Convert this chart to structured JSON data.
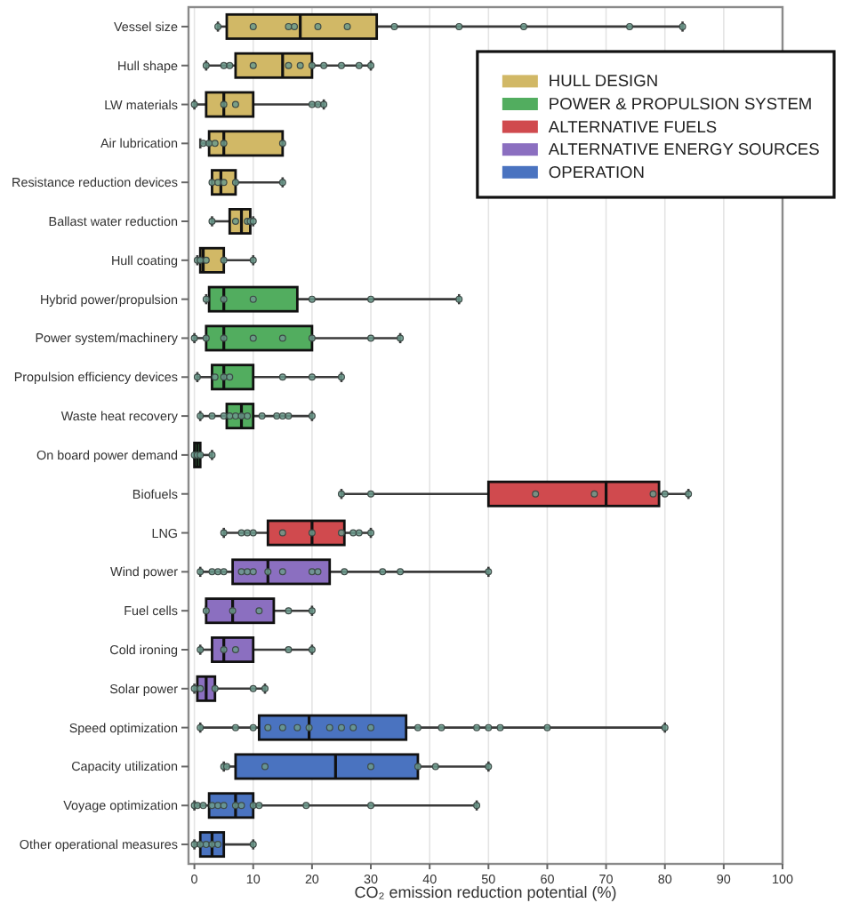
{
  "chart_data": {
    "type": "box",
    "orientation": "horizontal",
    "categories": [
      "Vessel size",
      "Hull shape",
      "LW materials",
      "Air lubrication",
      "Resistance reduction devices",
      "Ballast water reduction",
      "Hull coating",
      "Hybrid power/propulsion",
      "Power system/machinery",
      "Propulsion efficiency devices",
      "Waste heat recovery",
      "On board power demand",
      "Biofuels",
      "LNG",
      "Wind power",
      "Fuel cells",
      "Cold ironing",
      "Solar power",
      "Speed optimization",
      "Capacity utilization",
      "Voyage optimization",
      "Other operational measures"
    ],
    "series": [
      {
        "name": "HULL DESIGN",
        "color": "#d1b866",
        "boxes": [
          {
            "low": 4,
            "q1": 5.5,
            "median": 18,
            "q3": 31,
            "high": 83
          },
          {
            "low": 2,
            "q1": 7,
            "median": 15,
            "q3": 20,
            "high": 30
          },
          {
            "low": 0,
            "q1": 2,
            "median": 5,
            "q3": 10,
            "high": 22
          },
          {
            "low": 1,
            "q1": 2.5,
            "median": 5,
            "q3": 15,
            "high": 15
          },
          {
            "low": 3,
            "q1": 3,
            "median": 4.5,
            "q3": 7,
            "high": 15
          },
          {
            "low": 3,
            "q1": 6,
            "median": 8,
            "q3": 9.5,
            "high": 10
          },
          {
            "low": 0.5,
            "q1": 1,
            "median": 1.5,
            "q3": 5,
            "high": 10
          },
          null,
          null,
          null,
          null,
          null,
          null,
          null,
          null,
          null,
          null,
          null,
          null,
          null,
          null,
          null
        ]
      },
      {
        "name": "POWER & PROPULSION SYSTEM",
        "color": "#52ad5f",
        "boxes": [
          null,
          null,
          null,
          null,
          null,
          null,
          null,
          {
            "low": 2,
            "q1": 2.5,
            "median": 5,
            "q3": 17.5,
            "high": 45
          },
          {
            "low": 0,
            "q1": 2,
            "median": 5,
            "q3": 20,
            "high": 35
          },
          {
            "low": 0.5,
            "q1": 3,
            "median": 5,
            "q3": 10,
            "high": 25
          },
          {
            "low": 1,
            "q1": 5.5,
            "median": 8,
            "q3": 10,
            "high": 20
          },
          {
            "low": 0,
            "q1": 0,
            "median": 0.5,
            "q3": 1,
            "high": 3
          },
          null,
          null,
          null,
          null,
          null,
          null,
          null,
          null,
          null,
          null
        ]
      },
      {
        "name": "ALTERNATIVE FUELS",
        "color": "#d04a4e",
        "boxes": [
          null,
          null,
          null,
          null,
          null,
          null,
          null,
          null,
          null,
          null,
          null,
          null,
          {
            "low": 25,
            "q1": 50,
            "median": 70,
            "q3": 79,
            "high": 84
          },
          {
            "low": 5,
            "q1": 12.5,
            "median": 20,
            "q3": 25.5,
            "high": 30
          },
          null,
          null,
          null,
          null,
          null,
          null,
          null,
          null
        ]
      },
      {
        "name": "ALTERNATIVE ENERGY SOURCES",
        "color": "#8b6fc0",
        "boxes": [
          null,
          null,
          null,
          null,
          null,
          null,
          null,
          null,
          null,
          null,
          null,
          null,
          null,
          null,
          {
            "low": 1,
            "q1": 6.5,
            "median": 12.5,
            "q3": 23,
            "high": 50
          },
          {
            "low": 2,
            "q1": 2,
            "median": 6.5,
            "q3": 13.5,
            "high": 20
          },
          {
            "low": 1,
            "q1": 3,
            "median": 5,
            "q3": 10,
            "high": 20
          },
          {
            "low": 0,
            "q1": 0.5,
            "median": 2,
            "q3": 3.5,
            "high": 12
          },
          null,
          null,
          null,
          null
        ]
      },
      {
        "name": "OPERATION",
        "color": "#4a73c0",
        "boxes": [
          null,
          null,
          null,
          null,
          null,
          null,
          null,
          null,
          null,
          null,
          null,
          null,
          null,
          null,
          null,
          null,
          null,
          null,
          {
            "low": 1,
            "q1": 11,
            "median": 19.5,
            "q3": 36,
            "high": 80
          },
          {
            "low": 5,
            "q1": 7,
            "median": 24,
            "q3": 38,
            "high": 50
          },
          {
            "low": 0,
            "q1": 2.5,
            "median": 7,
            "q3": 10,
            "high": 48
          },
          {
            "low": 0,
            "q1": 1,
            "median": 3,
            "q3": 5,
            "high": 10
          }
        ]
      },
      {
        "type": "scatter",
        "color": "#6b9a8c",
        "x": [
          "Vessel size",
          "Vessel size",
          "Vessel size",
          "Vessel size",
          "Vessel size",
          "Vessel size",
          "Vessel size",
          "Vessel size",
          "Vessel size",
          "Vessel size",
          "Vessel size",
          "Hull shape",
          "Hull shape",
          "Hull shape",
          "Hull shape",
          "Hull shape",
          "Hull shape",
          "Hull shape",
          "Hull shape",
          "Hull shape",
          "Hull shape",
          "Hull shape",
          "LW materials",
          "LW materials",
          "LW materials",
          "LW materials",
          "LW materials",
          "LW materials",
          "Air lubrication",
          "Air lubrication",
          "Air lubrication",
          "Air lubrication",
          "Air lubrication",
          "Resistance reduction devices",
          "Resistance reduction devices",
          "Resistance reduction devices",
          "Resistance reduction devices",
          "Resistance reduction devices",
          "Ballast water reduction",
          "Ballast water reduction",
          "Ballast water reduction",
          "Ballast water reduction",
          "Ballast water reduction",
          "Hull coating",
          "Hull coating",
          "Hull coating",
          "Hull coating",
          "Hull coating",
          "Hybrid power/propulsion",
          "Hybrid power/propulsion",
          "Hybrid power/propulsion",
          "Hybrid power/propulsion",
          "Hybrid power/propulsion",
          "Hybrid power/propulsion",
          "Power system/machinery",
          "Power system/machinery",
          "Power system/machinery",
          "Power system/machinery",
          "Power system/machinery",
          "Power system/machinery",
          "Power system/machinery",
          "Power system/machinery",
          "Propulsion efficiency devices",
          "Propulsion efficiency devices",
          "Propulsion efficiency devices",
          "Propulsion efficiency devices",
          "Propulsion efficiency devices",
          "Propulsion efficiency devices",
          "Propulsion efficiency devices",
          "Waste heat recovery",
          "Waste heat recovery",
          "Waste heat recovery",
          "Waste heat recovery",
          "Waste heat recovery",
          "Waste heat recovery",
          "Waste heat recovery",
          "Waste heat recovery",
          "Waste heat recovery",
          "Waste heat recovery",
          "Waste heat recovery",
          "Waste heat recovery",
          "On board power demand",
          "On board power demand",
          "On board power demand",
          "On board power demand",
          "Biofuels",
          "Biofuels",
          "Biofuels",
          "Biofuels",
          "Biofuels",
          "Biofuels",
          "Biofuels",
          "LNG",
          "LNG",
          "LNG",
          "LNG",
          "LNG",
          "LNG",
          "LNG",
          "LNG",
          "LNG",
          "LNG",
          "Wind power",
          "Wind power",
          "Wind power",
          "Wind power",
          "Wind power",
          "Wind power",
          "Wind power",
          "Wind power",
          "Wind power",
          "Wind power",
          "Wind power",
          "Wind power",
          "Wind power",
          "Wind power",
          "Wind power",
          "Fuel cells",
          "Fuel cells",
          "Fuel cells",
          "Fuel cells",
          "Fuel cells",
          "Cold ironing",
          "Cold ironing",
          "Cold ironing",
          "Cold ironing",
          "Cold ironing",
          "Solar power",
          "Solar power",
          "Solar power",
          "Solar power",
          "Solar power",
          "Speed optimization",
          "Speed optimization",
          "Speed optimization",
          "Speed optimization",
          "Speed optimization",
          "Speed optimization",
          "Speed optimization",
          "Speed optimization",
          "Speed optimization",
          "Speed optimization",
          "Speed optimization",
          "Speed optimization",
          "Speed optimization",
          "Speed optimization",
          "Speed optimization",
          "Speed optimization",
          "Speed optimization",
          "Speed optimization",
          "Capacity utilization",
          "Capacity utilization",
          "Capacity utilization",
          "Capacity utilization",
          "Capacity utilization",
          "Capacity utilization",
          "Capacity utilization",
          "Voyage optimization",
          "Voyage optimization",
          "Voyage optimization",
          "Voyage optimization",
          "Voyage optimization",
          "Voyage optimization",
          "Voyage optimization",
          "Voyage optimization",
          "Voyage optimization",
          "Voyage optimization",
          "Voyage optimization",
          "Voyage optimization",
          "Voyage optimization",
          "Other operational measures",
          "Other operational measures",
          "Other operational measures",
          "Other operational measures",
          "Other operational measures",
          "Other operational measures"
        ],
        "values": [
          4,
          10,
          16,
          17,
          21,
          26,
          34,
          45,
          56,
          74,
          83,
          2,
          5,
          6,
          10,
          16,
          18,
          20,
          22,
          25,
          28,
          30,
          0,
          5,
          7,
          20,
          21,
          22,
          1.5,
          2.5,
          3.5,
          5,
          15,
          3,
          4,
          5,
          7,
          15,
          3,
          7,
          9,
          9.5,
          10,
          0.5,
          1,
          2,
          5,
          10,
          2,
          5,
          10,
          20,
          30,
          45,
          0,
          2,
          5,
          10,
          15,
          20,
          30,
          35,
          0.5,
          3.5,
          5,
          6,
          15,
          20,
          25,
          1,
          3,
          5,
          6,
          7,
          8,
          9,
          11.5,
          14,
          15,
          16,
          20,
          0,
          0.5,
          1,
          3,
          25,
          30,
          58,
          68,
          78,
          80,
          84,
          5,
          8,
          9,
          10,
          15,
          20,
          25,
          27,
          28,
          30,
          1,
          3,
          4,
          5,
          8,
          9,
          10,
          12.5,
          15,
          20,
          21,
          25.5,
          32,
          35,
          50,
          2,
          6.5,
          11,
          16,
          20,
          1,
          5,
          7,
          16,
          20,
          0,
          1,
          3.5,
          10,
          12,
          1,
          7,
          10,
          12.5,
          15,
          17.5,
          19.5,
          23,
          25,
          27,
          30,
          38,
          42,
          48,
          50,
          52,
          60,
          80,
          5,
          5.5,
          12,
          30,
          38,
          41,
          50,
          0,
          0.5,
          1.5,
          3,
          4,
          5,
          7,
          8,
          10,
          11,
          19,
          30,
          48,
          0,
          1,
          2,
          3,
          4,
          10
        ]
      }
    ],
    "xlabel": "CO₂ emission reduction potential (%)",
    "xlim": [
      -1,
      100
    ],
    "xticks": [
      0,
      10,
      20,
      30,
      40,
      50,
      60,
      70,
      80,
      90,
      100
    ],
    "grid": "x",
    "legend": "top right"
  }
}
